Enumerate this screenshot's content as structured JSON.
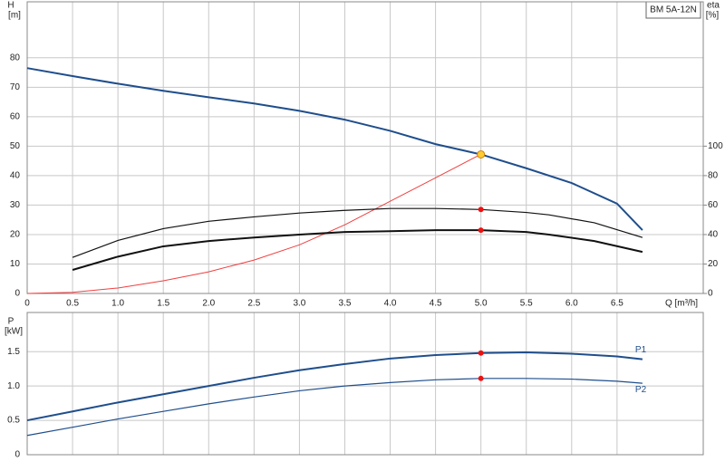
{
  "chart_data": [
    {
      "type": "line",
      "title": "BM 5A-12N",
      "y_label": "H",
      "y_unit": "[m]",
      "y2_label": "eta",
      "y2_unit": "[%]",
      "x_label": "Q [m³/h]",
      "xlim": [
        0,
        7.45
      ],
      "xticks": [
        0,
        0.5,
        {
          "value": 1,
          "label": "1.0"
        },
        1.5,
        {
          "value": 2,
          "label": "2.0"
        },
        2.5,
        {
          "value": 3,
          "label": "3.0"
        },
        3.5,
        {
          "value": 4,
          "label": "4.0"
        },
        4.5,
        {
          "value": 5,
          "label": "5.0"
        },
        5.5,
        {
          "value": 6,
          "label": "6.0"
        },
        6.5
      ],
      "ylim": [
        0,
        99
      ],
      "yticks": [
        0,
        10,
        20,
        30,
        40,
        50,
        60,
        70,
        80
      ],
      "y2lim": [
        0,
        198
      ],
      "y2ticks": [
        0,
        20,
        40,
        60,
        80,
        100
      ],
      "grid": true,
      "series": [
        {
          "color": "#1f4e8c",
          "line_width": 2,
          "x": [
            0,
            0.5,
            1,
            1.5,
            2,
            2.5,
            3,
            3.5,
            4,
            4.5,
            5,
            5.5,
            6,
            6.5,
            6.78
          ],
          "values": [
            76.5,
            73.8,
            71.2,
            68.8,
            66.6,
            64.5,
            62,
            59,
            55.2,
            50.7,
            47.2,
            42.5,
            37.5,
            30.5,
            21.5
          ]
        },
        {
          "color": "#f04040",
          "line_width": 1,
          "axis": "y2",
          "x": [
            0,
            0.5,
            1,
            1.5,
            2,
            2.5,
            3,
            3.5,
            4,
            4.5,
            5
          ],
          "values": [
            0,
            0.8,
            3.7,
            8.6,
            14.7,
            22.7,
            33,
            46.6,
            62.6,
            78.5,
            94.5
          ]
        },
        {
          "color": "#111111",
          "line_width": 1.2,
          "axis": "y2",
          "x": [
            0.5,
            1,
            1.5,
            2,
            2.5,
            3,
            3.5,
            4,
            4.5,
            5,
            5.5,
            5.75,
            6.25,
            6.78
          ],
          "values": [
            24.5,
            36,
            44,
            49,
            52,
            54.6,
            56.4,
            57.7,
            57.7,
            57,
            55,
            53.4,
            48,
            38
          ]
        },
        {
          "color": "#111111",
          "line_width": 2,
          "axis": "y2",
          "x": [
            0.5,
            1,
            1.5,
            2,
            2.5,
            3,
            3.5,
            4,
            4.5,
            5,
            5.5,
            5.75,
            6.25,
            6.78
          ],
          "values": [
            16,
            25,
            32,
            35.6,
            38,
            40,
            41.7,
            42.3,
            43,
            43,
            41.7,
            40,
            35.6,
            28.2
          ]
        }
      ],
      "points": [
        {
          "x": 5,
          "y": 47.2,
          "color": "#ffcc33"
        },
        {
          "x": 5,
          "y": 57,
          "color": "#ee1111",
          "axis": "y2"
        },
        {
          "x": 5,
          "y": 43,
          "color": "#ee1111",
          "axis": "y2"
        }
      ]
    },
    {
      "type": "line",
      "y_label": "P",
      "y_unit": "[kW]",
      "xlim": [
        0,
        7.45
      ],
      "xticks": [
        0,
        0.5,
        1,
        1.5,
        2,
        2.5,
        3,
        3.5,
        4,
        4.5,
        5,
        5.5,
        6,
        6.5
      ],
      "ylim": [
        0,
        2.07
      ],
      "yticks": [
        0,
        0.5,
        {
          "value": 1,
          "label": "1.0"
        },
        1.5
      ],
      "grid": true,
      "series": [
        {
          "name": "P1",
          "color": "#1f4e8c",
          "line_width": 2,
          "x": [
            0,
            0.5,
            1,
            1.5,
            2,
            2.5,
            3,
            3.5,
            4,
            4.5,
            5,
            5.5,
            6,
            6.5,
            6.78
          ],
          "values": [
            0.5,
            0.63,
            0.76,
            0.88,
            1,
            1.12,
            1.23,
            1.32,
            1.4,
            1.45,
            1.48,
            1.49,
            1.47,
            1.43,
            1.39
          ]
        },
        {
          "name": "P2",
          "color": "#1f4e8c",
          "line_width": 1.2,
          "x": [
            0,
            0.5,
            1,
            1.5,
            2,
            2.5,
            3,
            3.5,
            4,
            4.5,
            5,
            5.5,
            6,
            6.5,
            6.78
          ],
          "values": [
            0.28,
            0.4,
            0.52,
            0.63,
            0.74,
            0.84,
            0.93,
            1,
            1.05,
            1.09,
            1.11,
            1.11,
            1.1,
            1.07,
            1.04
          ]
        }
      ],
      "points": [
        {
          "x": 5,
          "y": 1.48,
          "color": "#ee1111"
        },
        {
          "x": 5,
          "y": 1.11,
          "color": "#ee1111"
        }
      ]
    }
  ]
}
